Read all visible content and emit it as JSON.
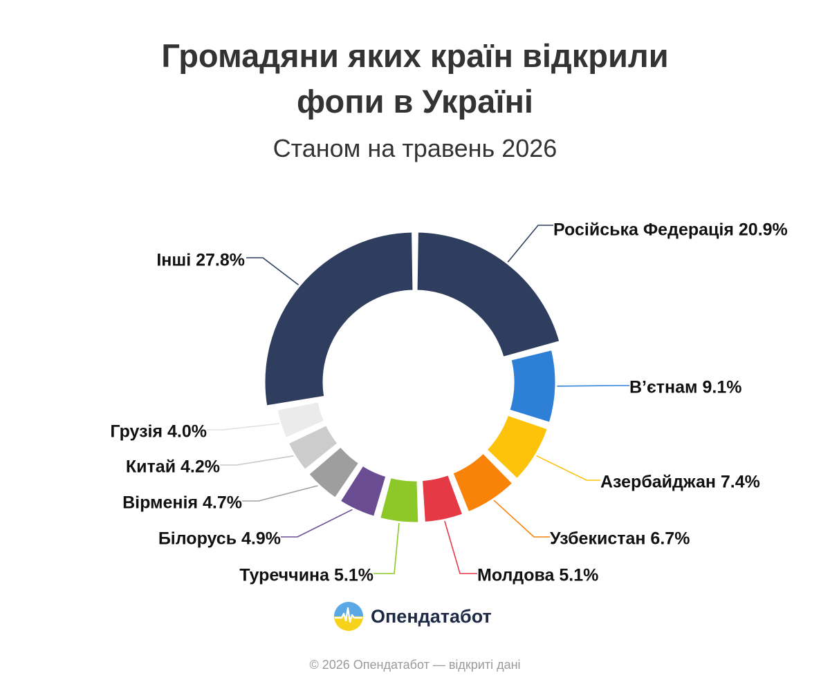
{
  "header": {
    "title_line1": "Громадяни яких країн відкрили",
    "title_line2": "фопи в Україні",
    "subtitle": "Станом на травень 2026"
  },
  "brand": {
    "name": "Опендатабот",
    "logo_icon": "opendatabot-logo-icon"
  },
  "footer": {
    "text": "© 2026 Опендатабот — відкриті дані"
  },
  "chart_data": {
    "type": "pie",
    "variant": "donut",
    "title": "Громадяни яких країн відкрили фопи в Україні",
    "subtitle": "Станом на травень 2026",
    "unit": "%",
    "slices": [
      {
        "label": "Російська Федерація",
        "value": 20.9,
        "text": "Російська Федерація 20.9%",
        "color": "#2f3e5e"
      },
      {
        "label": "В’єтнам",
        "value": 9.1,
        "text": "В’єтнам 9.1%",
        "color": "#2e7fd6"
      },
      {
        "label": "Азербайджан",
        "value": 7.4,
        "text": "Азербайджан 7.4%",
        "color": "#fdc20a"
      },
      {
        "label": "Узбекистан",
        "value": 6.7,
        "text": "Узбекистан 6.7%",
        "color": "#f98208"
      },
      {
        "label": "Молдова",
        "value": 5.1,
        "text": "Молдова 5.1%",
        "color": "#e63946"
      },
      {
        "label": "Туреччина",
        "value": 5.1,
        "text": "Туреччина 5.1%",
        "color": "#8bc828"
      },
      {
        "label": "Білорусь",
        "value": 4.9,
        "text": "Білорусь 4.9%",
        "color": "#6a4c93"
      },
      {
        "label": "Вірменія",
        "value": 4.7,
        "text": "Вірменія 4.7%",
        "color": "#9e9e9e"
      },
      {
        "label": "Китай",
        "value": 4.2,
        "text": "Китай 4.2%",
        "color": "#cccccc"
      },
      {
        "label": "Грузія",
        "value": 4.0,
        "text": "Грузія 4.0%",
        "color": "#ebebeb"
      },
      {
        "label": "Інші",
        "value": 27.8,
        "text": "Інші 27.8%",
        "color": "#2f3e5e"
      }
    ]
  }
}
